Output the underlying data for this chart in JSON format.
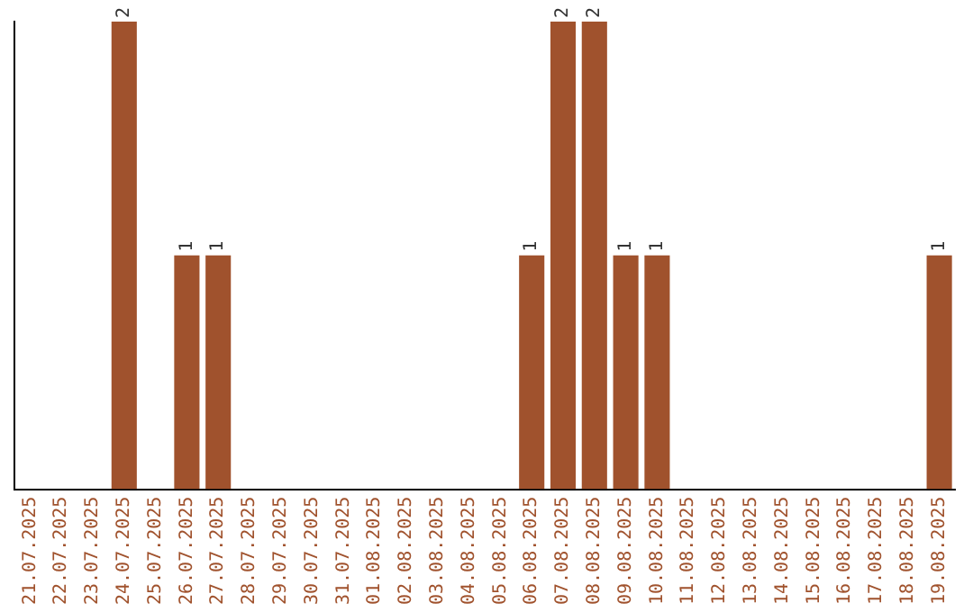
{
  "chart_data": {
    "type": "bar",
    "categories": [
      "21.07.2025",
      "22.07.2025",
      "23.07.2025",
      "24.07.2025",
      "25.07.2025",
      "26.07.2025",
      "27.07.2025",
      "28.07.2025",
      "29.07.2025",
      "30.07.2025",
      "31.07.2025",
      "01.08.2025",
      "02.08.2025",
      "03.08.2025",
      "04.08.2025",
      "05.08.2025",
      "06.08.2025",
      "07.08.2025",
      "08.08.2025",
      "09.08.2025",
      "10.08.2025",
      "11.08.2025",
      "12.08.2025",
      "13.08.2025",
      "14.08.2025",
      "15.08.2025",
      "16.08.2025",
      "17.08.2025",
      "18.08.2025",
      "19.08.2025"
    ],
    "values": [
      0,
      0,
      0,
      2,
      0,
      1,
      1,
      0,
      0,
      0,
      0,
      0,
      0,
      0,
      0,
      0,
      1,
      2,
      2,
      1,
      1,
      0,
      0,
      0,
      0,
      0,
      0,
      0,
      0,
      1
    ],
    "value_labels": [
      null,
      null,
      null,
      "2",
      null,
      "1",
      "1",
      null,
      null,
      null,
      null,
      null,
      null,
      null,
      null,
      null,
      "1",
      "2",
      "2",
      "1",
      "1",
      null,
      null,
      null,
      null,
      null,
      null,
      null,
      null,
      "1"
    ],
    "color": "#a0522d",
    "tick_labels": "x",
    "grid": false,
    "legend": false
  }
}
